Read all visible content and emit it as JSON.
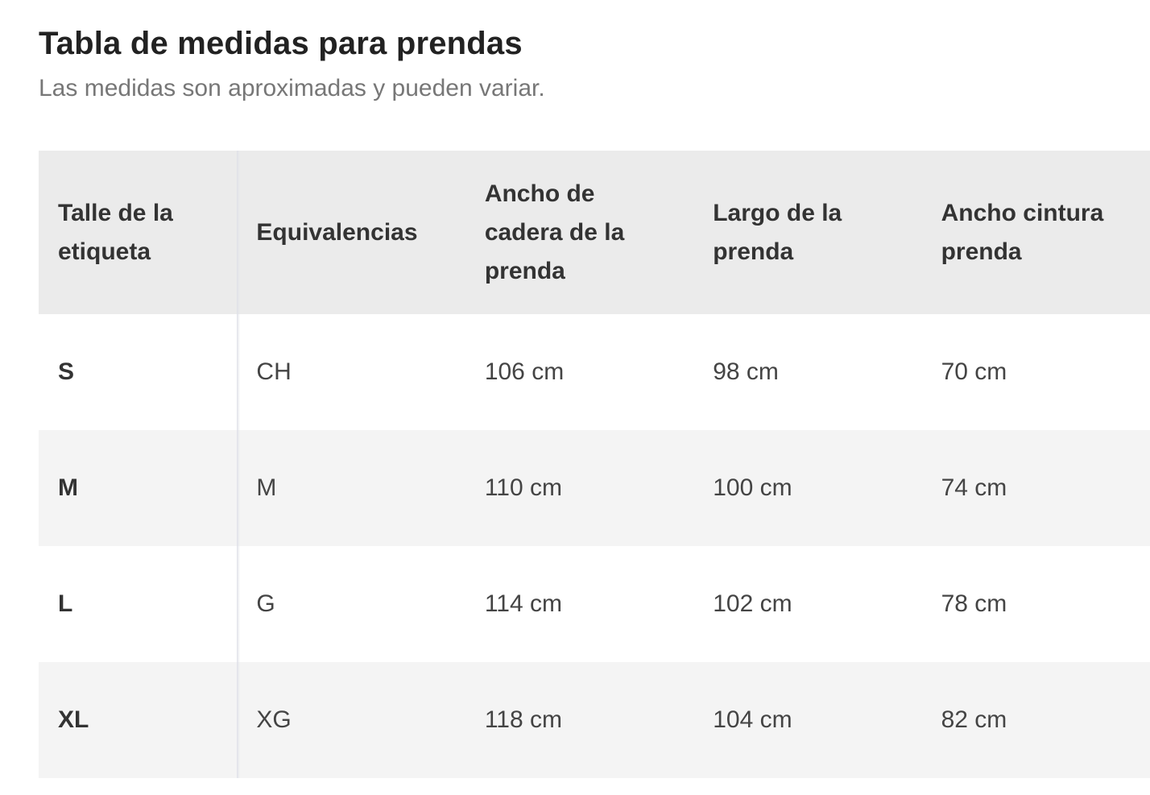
{
  "header": {
    "title": "Tabla de medidas para prendas",
    "subtitle": "Las medidas son aproximadas y pueden variar."
  },
  "table": {
    "columns": [
      "Talle de la etiqueta",
      "Equivalencias",
      "Ancho de cadera de la prenda",
      "Largo de la prenda",
      "Ancho cintura prenda"
    ],
    "rows": [
      {
        "size": "S",
        "equiv": "CH",
        "hip": "106 cm",
        "length": "98 cm",
        "waist": "70 cm"
      },
      {
        "size": "M",
        "equiv": "M",
        "hip": "110 cm",
        "length": "100 cm",
        "waist": "74 cm"
      },
      {
        "size": "L",
        "equiv": "G",
        "hip": "114 cm",
        "length": "102 cm",
        "waist": "78 cm"
      },
      {
        "size": "XL",
        "equiv": "XG",
        "hip": "118 cm",
        "length": "104 cm",
        "waist": "82 cm"
      }
    ]
  }
}
